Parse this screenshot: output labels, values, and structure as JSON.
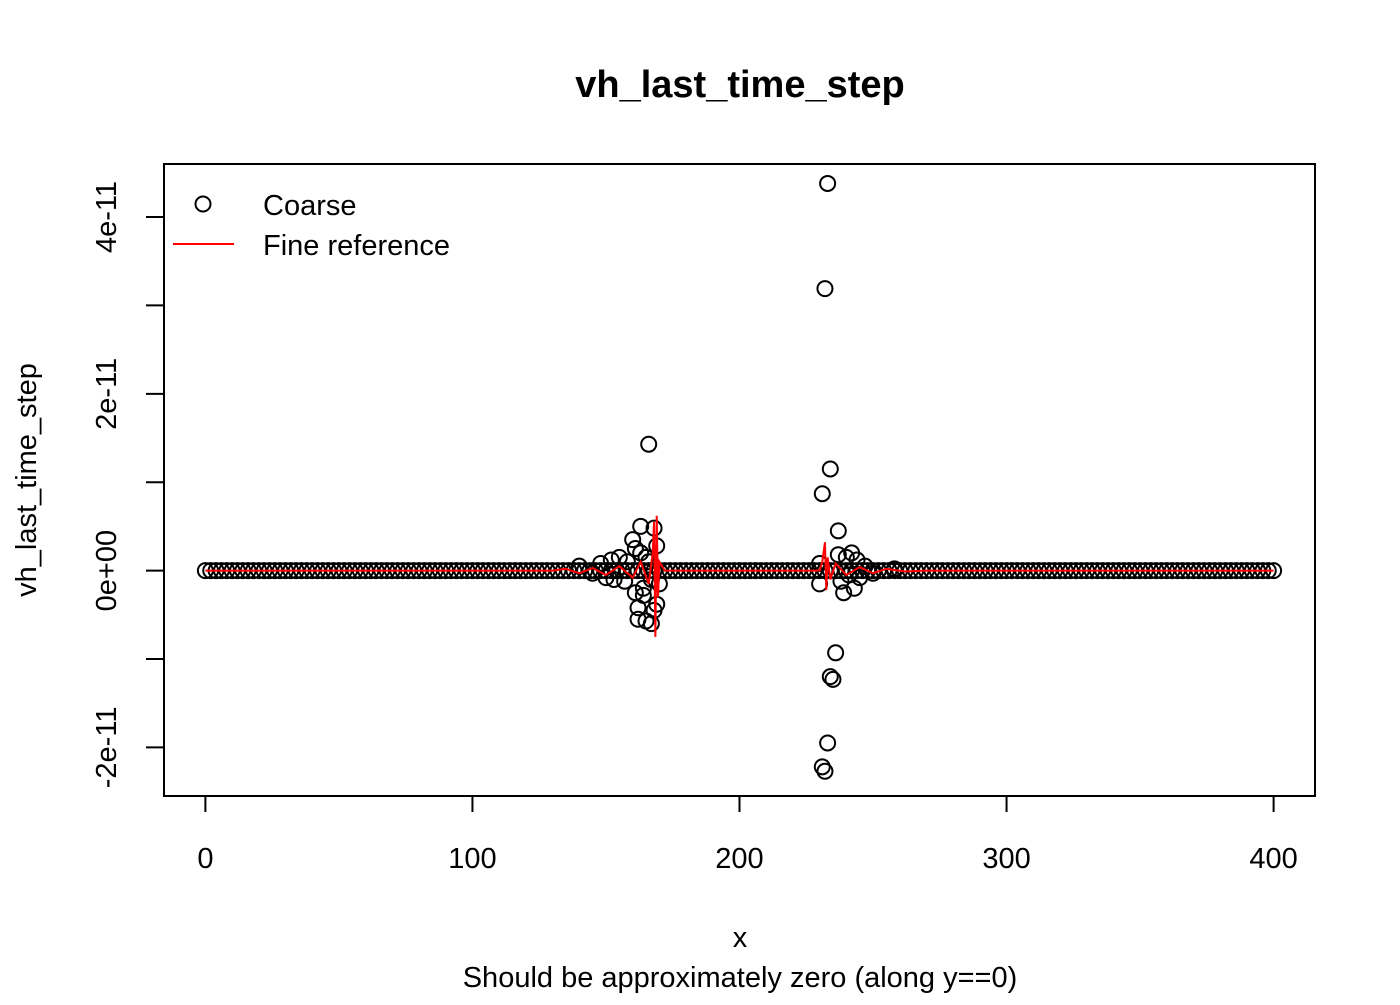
{
  "chart_data": {
    "type": "scatter",
    "title": "vh_last_time_step",
    "xlabel": "x",
    "ylabel": "vh_last_time_step",
    "subtitle": "Should be approximately zero (along y==0)",
    "xlim": [
      -15.5,
      415.5
    ],
    "ylim": [
      -2.55e-11,
      4.6e-11
    ],
    "x_ticks": [
      0,
      100,
      200,
      300,
      400
    ],
    "x_tick_labels": [
      "0",
      "100",
      "200",
      "300",
      "400"
    ],
    "y_ticks": [
      -2e-11,
      -1e-11,
      0,
      1e-11,
      2e-11,
      3e-11,
      4e-11
    ],
    "y_tick_labels": [
      "-2e-11",
      "",
      "0e+00",
      "",
      "2e-11",
      "",
      "4e-11"
    ],
    "grid": false,
    "legend_position": "top-left",
    "series": [
      {
        "name": "Coarse",
        "style": "points",
        "color": "#000000",
        "baseline": {
          "x_start": 0,
          "x_end": 400,
          "step": 2,
          "y": 0
        },
        "points": [
          {
            "x": 140,
            "y": 5e-13
          },
          {
            "x": 145,
            "y": -3e-13
          },
          {
            "x": 148,
            "y": 8e-13
          },
          {
            "x": 150,
            "y": -8e-13
          },
          {
            "x": 152,
            "y": 1.2e-12
          },
          {
            "x": 153,
            "y": -1e-12
          },
          {
            "x": 155,
            "y": 1.5e-12
          },
          {
            "x": 157,
            "y": -1.2e-12
          },
          {
            "x": 158,
            "y": 1e-12
          },
          {
            "x": 160,
            "y": 3.5e-12
          },
          {
            "x": 161,
            "y": 2.5e-12
          },
          {
            "x": 161,
            "y": -2.5e-12
          },
          {
            "x": 162,
            "y": -4.2e-12
          },
          {
            "x": 162,
            "y": -5.5e-12
          },
          {
            "x": 163,
            "y": 5e-12
          },
          {
            "x": 163,
            "y": 2e-12
          },
          {
            "x": 164,
            "y": -2e-12
          },
          {
            "x": 164,
            "y": -2.8e-12
          },
          {
            "x": 165,
            "y": 1.5e-12
          },
          {
            "x": 165,
            "y": -5.7e-12
          },
          {
            "x": 166,
            "y": 1.43e-11
          },
          {
            "x": 166,
            "y": 1e-12
          },
          {
            "x": 167,
            "y": -6e-12
          },
          {
            "x": 167,
            "y": -1e-12
          },
          {
            "x": 168,
            "y": -4.5e-12
          },
          {
            "x": 168,
            "y": 4.8e-12
          },
          {
            "x": 169,
            "y": 2.8e-12
          },
          {
            "x": 169,
            "y": -3.8e-12
          },
          {
            "x": 170,
            "y": -1.5e-12
          },
          {
            "x": 230,
            "y": 8e-13
          },
          {
            "x": 230,
            "y": -1.5e-12
          },
          {
            "x": 231,
            "y": 8.7e-12
          },
          {
            "x": 231,
            "y": -2.22e-11
          },
          {
            "x": 232,
            "y": 3.19e-11
          },
          {
            "x": 232,
            "y": -2.27e-11
          },
          {
            "x": 233,
            "y": 4.38e-11
          },
          {
            "x": 233,
            "y": -1.95e-11
          },
          {
            "x": 234,
            "y": -1.2e-11
          },
          {
            "x": 234,
            "y": 1.15e-11
          },
          {
            "x": 235,
            "y": -1.23e-11
          },
          {
            "x": 236,
            "y": -9.3e-12
          },
          {
            "x": 237,
            "y": 4.5e-12
          },
          {
            "x": 237,
            "y": 1.8e-12
          },
          {
            "x": 238,
            "y": -1.2e-12
          },
          {
            "x": 239,
            "y": -2.5e-12
          },
          {
            "x": 240,
            "y": 1.5e-12
          },
          {
            "x": 241,
            "y": -5e-13
          },
          {
            "x": 242,
            "y": 2e-12
          },
          {
            "x": 243,
            "y": -2e-12
          },
          {
            "x": 244,
            "y": 1.2e-12
          },
          {
            "x": 245,
            "y": -8e-13
          },
          {
            "x": 247,
            "y": 5e-13
          },
          {
            "x": 250,
            "y": -3e-13
          },
          {
            "x": 258,
            "y": 2e-13
          }
        ]
      },
      {
        "name": "Fine reference",
        "style": "line",
        "color": "#ff0000",
        "points": [
          {
            "x": 0,
            "y": 0
          },
          {
            "x": 130,
            "y": 0
          },
          {
            "x": 135,
            "y": 2e-13
          },
          {
            "x": 140,
            "y": -3e-13
          },
          {
            "x": 145,
            "y": 3e-13
          },
          {
            "x": 150,
            "y": -5e-13
          },
          {
            "x": 155,
            "y": 5e-13
          },
          {
            "x": 160,
            "y": -8e-13
          },
          {
            "x": 163,
            "y": 1e-12
          },
          {
            "x": 166,
            "y": -1.5e-12
          },
          {
            "x": 167.5,
            "y": 2e-12
          },
          {
            "x": 168,
            "y": 5.5e-12
          },
          {
            "x": 168.5,
            "y": -7.5e-12
          },
          {
            "x": 169,
            "y": 6.2e-12
          },
          {
            "x": 169.5,
            "y": -3e-12
          },
          {
            "x": 170,
            "y": 1e-12
          },
          {
            "x": 172,
            "y": 0
          },
          {
            "x": 230,
            "y": 0
          },
          {
            "x": 231,
            "y": 1e-12
          },
          {
            "x": 232,
            "y": 3.2e-12
          },
          {
            "x": 232.5,
            "y": -2.2e-12
          },
          {
            "x": 233,
            "y": 1.5e-12
          },
          {
            "x": 234,
            "y": -1e-12
          },
          {
            "x": 236,
            "y": 8e-13
          },
          {
            "x": 240,
            "y": -5e-13
          },
          {
            "x": 245,
            "y": 4e-13
          },
          {
            "x": 250,
            "y": -3e-13
          },
          {
            "x": 255,
            "y": 2e-13
          },
          {
            "x": 262,
            "y": -1e-13
          },
          {
            "x": 270,
            "y": 0
          },
          {
            "x": 400,
            "y": 0
          }
        ]
      }
    ]
  }
}
